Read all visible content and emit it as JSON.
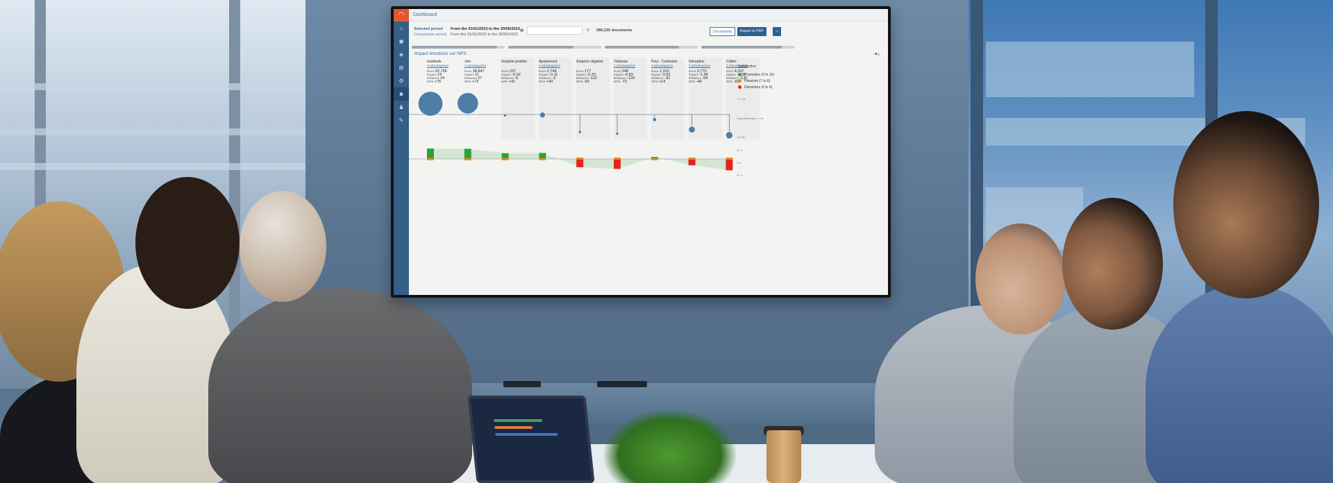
{
  "dashboard": {
    "title": "Dashboard",
    "selected_label": "Selected period",
    "comparison_label": "Comparison period",
    "selected_range": "From the 01/01/2023 to the 30/06/2023",
    "comparison_range": "From the 01/01/2022 to the 30/06/2022",
    "documents_count": "280,235 documents",
    "documents_button": "Documents",
    "export_button": "Export to PDF",
    "panel_title": "Impact émotions sur NPS",
    "emotions": [
      {
        "name": "Gratitude",
        "sub": "2 subcategories",
        "docs": "52,755",
        "impact": "14",
        "distance": "24",
        "nps": "+75"
      },
      {
        "name": "Joie",
        "sub": "2 subcategories",
        "docs": "38,847",
        "impact": "11",
        "distance": "27",
        "nps": "+73"
      },
      {
        "name": "Surprise positive",
        "sub": "",
        "docs": "227",
        "impact": "-0.02",
        "distance": "-5",
        "nps": "+41"
      },
      {
        "name": "Apaisement",
        "sub": "2 subcategories",
        "docs": "2,746",
        "impact": "-0.11",
        "distance": "-3",
        "nps": "+43"
      },
      {
        "name": "Surprise négative",
        "sub": "",
        "docs": "177",
        "impact": "-0.33",
        "distance": "-110",
        "nps": "-60"
      },
      {
        "name": "Tristesse",
        "sub": "2 subcategories",
        "docs": "248",
        "impact": "-0.83",
        "distance": "-120",
        "nps": "-72"
      },
      {
        "name": "Peur - Confusion",
        "sub": "2 subcategories",
        "docs": "1,310",
        "impact": "-0.81",
        "distance": "-32",
        "nps": "+14"
      },
      {
        "name": "Déception",
        "sub": "2 subcategories",
        "docs": "3,770",
        "impact": "-1.96",
        "distance": "-94",
        "nps": "-46"
      },
      {
        "name": "Colère",
        "sub": "2 subcategories",
        "docs": "4,267",
        "impact": "-4.36",
        "distance": "-130",
        "nps": "-82"
      }
    ],
    "row_labels": {
      "docs": "Docs",
      "impact": "Impact",
      "distance": "Distance",
      "nps": "NPS"
    },
    "legend": {
      "title": "Satisfaction",
      "items": [
        {
          "label": "Promoters (9 to 10)",
          "color": "#2aa336"
        },
        {
          "label": "Passives (7 to 8)",
          "color": "#f08a24"
        },
        {
          "label": "Detractors (0 to 6)",
          "color": "#e3261b"
        }
      ]
    },
    "axis_labels": {
      "top": "+17 pts",
      "mid": "Objectif/average = +46",
      "low": "-17 pts",
      "bars_top": "97 %",
      "bars_mid": "0 %",
      "bars_low": "97 %"
    },
    "colors": {
      "accent": "#2d5f94",
      "rail": "#355e88",
      "brand": "#e4572e"
    }
  }
}
